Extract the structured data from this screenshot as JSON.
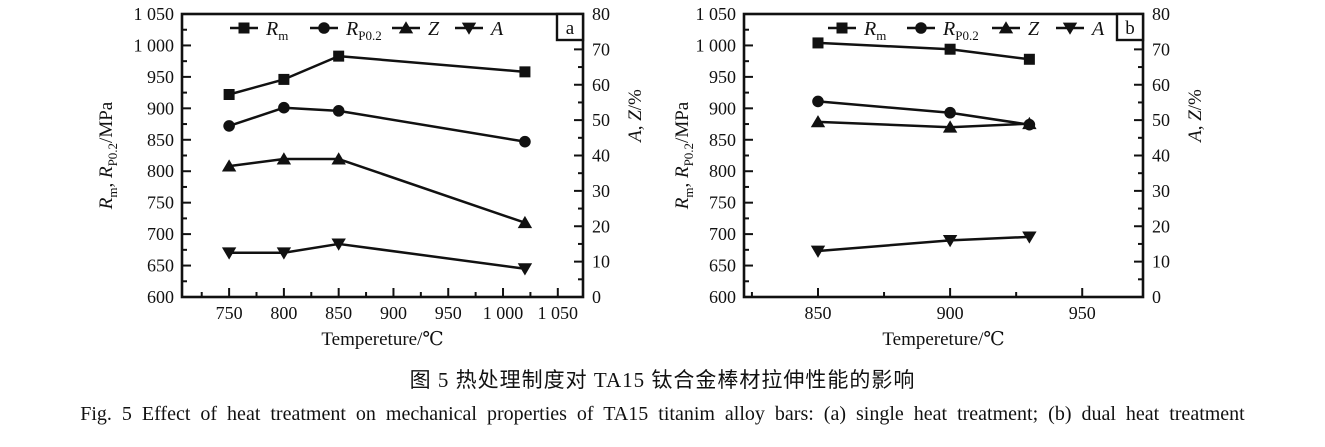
{
  "figure": {
    "caption_zh": "图 5  热处理制度对 TA15 钛合金棒材拉伸性能的影响",
    "caption_en": "Fig. 5  Effect of heat treatment on mechanical properties of TA15 titanim alloy bars: (a) single heat treatment; (b) dual heat treatment"
  },
  "colors": {
    "ink": "#111111",
    "background": "#ffffff"
  },
  "chart_data": [
    {
      "type": "line",
      "panel_label": "a",
      "xlabel": "Tempereture/℃",
      "ylabel_left": "Rm, RP0.2/MPa",
      "ylabel_left_parts": [
        [
          "i",
          "R"
        ],
        [
          "sub",
          "m"
        ],
        [
          "n",
          ", "
        ],
        [
          "i",
          "R"
        ],
        [
          "sub",
          "P0.2"
        ],
        [
          "n",
          "/MPa"
        ]
      ],
      "ylabel_right": "A, Z/%",
      "ylabel_right_parts": [
        [
          "i",
          "A"
        ],
        [
          "n",
          ", "
        ],
        [
          "i",
          "Z"
        ],
        [
          "n",
          "/%"
        ]
      ],
      "xlim": [
        707,
        1073
      ],
      "ylim_left": [
        600,
        1050
      ],
      "ylim_right": [
        0,
        80
      ],
      "x_major_ticks": [
        750,
        800,
        850,
        900,
        950,
        1000,
        1050
      ],
      "x_tick_labels": [
        "750",
        "800",
        "850",
        "900",
        "950",
        "1 000",
        "1 050"
      ],
      "x_minor_step": 25,
      "y_left_major_step": 50,
      "y_left_minor_step": 25,
      "y_left_tick_labels": [
        "600",
        "650",
        "700",
        "750",
        "800",
        "850",
        "900",
        "950",
        "1 000",
        "1 050"
      ],
      "y_right_major_step": 10,
      "y_right_minor_step": 5,
      "y_right_tick_labels": [
        "0",
        "10",
        "20",
        "30",
        "40",
        "50",
        "60",
        "70",
        "80"
      ],
      "grid": false,
      "legend_position": "top-inside",
      "legend": [
        {
          "name": "Rm",
          "label_parts": [
            [
              "i",
              "R"
            ],
            [
              "sub",
              "m"
            ]
          ],
          "marker": "square"
        },
        {
          "name": "RP0.2",
          "label_parts": [
            [
              "i",
              "R"
            ],
            [
              "sub",
              "P0.2"
            ]
          ],
          "marker": "circle"
        },
        {
          "name": "Z",
          "label_parts": [
            [
              "i",
              "Z"
            ]
          ],
          "marker": "triangle-up"
        },
        {
          "name": "A",
          "label_parts": [
            [
              "i",
              "A"
            ]
          ],
          "marker": "triangle-down"
        }
      ],
      "series": [
        {
          "name": "Rm",
          "marker": "square",
          "axis": "left",
          "x": [
            750,
            800,
            850,
            1020
          ],
          "y": [
            922,
            946,
            983,
            958
          ]
        },
        {
          "name": "RP0.2",
          "marker": "circle",
          "axis": "left",
          "x": [
            750,
            800,
            850,
            1020
          ],
          "y": [
            872,
            901,
            896,
            847
          ]
        },
        {
          "name": "Z",
          "marker": "triangle-up",
          "axis": "right",
          "x": [
            750,
            800,
            850,
            1020
          ],
          "y": [
            37,
            39,
            39,
            21
          ]
        },
        {
          "name": "A",
          "marker": "triangle-down",
          "axis": "right",
          "x": [
            750,
            800,
            850,
            1020
          ],
          "y": [
            12.5,
            12.5,
            15,
            8
          ]
        }
      ]
    },
    {
      "type": "line",
      "panel_label": "b",
      "xlabel": "Tempereture/℃",
      "ylabel_left": "Rm, RP0.2/MPa",
      "ylabel_left_parts": [
        [
          "i",
          "R"
        ],
        [
          "sub",
          "m"
        ],
        [
          "n",
          ", "
        ],
        [
          "i",
          "R"
        ],
        [
          "sub",
          "P0.2"
        ],
        [
          "n",
          "/MPa"
        ]
      ],
      "ylabel_right": "A, Z/%",
      "ylabel_right_parts": [
        [
          "i",
          "A"
        ],
        [
          "n",
          ", "
        ],
        [
          "i",
          "Z"
        ],
        [
          "n",
          "/%"
        ]
      ],
      "xlim": [
        822,
        973
      ],
      "ylim_left": [
        600,
        1050
      ],
      "ylim_right": [
        0,
        80
      ],
      "x_major_ticks": [
        850,
        900,
        950
      ],
      "x_tick_labels": [
        "850",
        "900",
        "950"
      ],
      "x_minor_step": 25,
      "y_left_major_step": 50,
      "y_left_minor_step": 25,
      "y_left_tick_labels": [
        "600",
        "650",
        "700",
        "750",
        "800",
        "850",
        "900",
        "950",
        "1 000",
        "1 050"
      ],
      "y_right_major_step": 10,
      "y_right_minor_step": 5,
      "y_right_tick_labels": [
        "0",
        "10",
        "20",
        "30",
        "40",
        "50",
        "60",
        "70",
        "80"
      ],
      "grid": false,
      "legend_position": "top-inside",
      "legend": [
        {
          "name": "Rm",
          "label_parts": [
            [
              "i",
              "R"
            ],
            [
              "sub",
              "m"
            ]
          ],
          "marker": "square"
        },
        {
          "name": "RP0.2",
          "label_parts": [
            [
              "i",
              "R"
            ],
            [
              "sub",
              "P0.2"
            ]
          ],
          "marker": "circle"
        },
        {
          "name": "Z",
          "label_parts": [
            [
              "i",
              "Z"
            ]
          ],
          "marker": "triangle-up"
        },
        {
          "name": "A",
          "label_parts": [
            [
              "i",
              "A"
            ]
          ],
          "marker": "triangle-down"
        }
      ],
      "series": [
        {
          "name": "Rm",
          "marker": "square",
          "axis": "left",
          "x": [
            850,
            900,
            930
          ],
          "y": [
            1004,
            994,
            978
          ]
        },
        {
          "name": "RP0.2",
          "marker": "circle",
          "axis": "left",
          "x": [
            850,
            900,
            930
          ],
          "y": [
            911,
            893,
            874
          ]
        },
        {
          "name": "Z",
          "marker": "triangle-up",
          "axis": "right",
          "x": [
            850,
            900,
            930
          ],
          "y": [
            49.5,
            48,
            49
          ]
        },
        {
          "name": "A",
          "marker": "triangle-down",
          "axis": "right",
          "x": [
            850,
            900,
            930
          ],
          "y": [
            13,
            16,
            17
          ]
        }
      ]
    }
  ]
}
